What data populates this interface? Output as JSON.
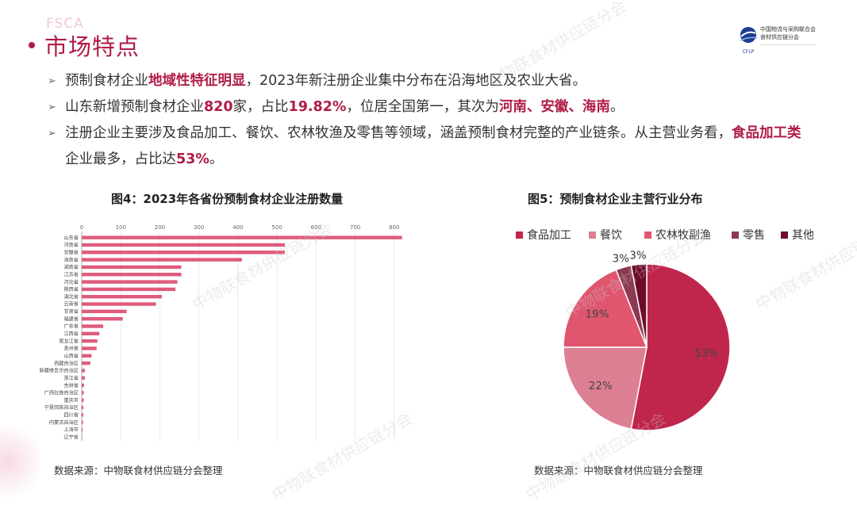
{
  "slide": {
    "faint_logo": "FSCA",
    "title": "市场特点"
  },
  "logo": {
    "line1": "中国物流与采购联合会",
    "line2": "食材供应链分会",
    "abbr": "CFLP",
    "line3": "——————————————"
  },
  "bullets": [
    [
      {
        "t": "预制食材企业",
        "hl": false
      },
      {
        "t": "地域性特征明显",
        "hl": true
      },
      {
        "t": "，2023年新注册企业集中分布在沿海地区及农业大省。",
        "hl": false
      }
    ],
    [
      {
        "t": "山东新增预制食材企业",
        "hl": false
      },
      {
        "t": "820",
        "hl": true
      },
      {
        "t": "家，占比",
        "hl": false
      },
      {
        "t": "19.82%",
        "hl": true
      },
      {
        "t": "，位居全国第一，其次为",
        "hl": false
      },
      {
        "t": "河南、安徽、海南",
        "hl": true
      },
      {
        "t": "。",
        "hl": false
      }
    ],
    [
      {
        "t": "注册企业主要涉及食品加工、餐饮、农林牧渔及零售等领域，涵盖预制食材完整的产业链条。从主营业务看，",
        "hl": false
      },
      {
        "t": "食品加工类",
        "hl": true
      },
      {
        "t": "企业最多，占比达",
        "hl": false
      },
      {
        "t": "53%",
        "hl": true
      },
      {
        "t": "。",
        "hl": false
      }
    ]
  ],
  "bullet_arrow": "➢",
  "colors": {
    "accent": "#b01c45",
    "bar": "#df5b7c",
    "pie": [
      "#c0264c",
      "#dd7f92",
      "#e0566f",
      "#8c3a52",
      "#6e0d2a"
    ]
  },
  "chart_data": [
    {
      "type": "bar",
      "orientation": "horizontal",
      "title": "图4：2023年各省份预制食材企业注册数量",
      "xlim": [
        0,
        900
      ],
      "xticks": [
        0,
        100,
        200,
        300,
        400,
        500,
        600,
        700,
        800
      ],
      "grid": true,
      "categories": [
        "山东省",
        "河南省",
        "安徽省",
        "海南省",
        "湖南省",
        "江苏省",
        "河北省",
        "陕西省",
        "湖北省",
        "云南省",
        "甘肃省",
        "福建省",
        "广东省",
        "江西省",
        "黑龙江省",
        "贵州省",
        "山西省",
        "西藏自治区",
        "新疆维吾尔自治区",
        "浙江省",
        "吉林省",
        "广西壮族自治区",
        "重庆市",
        "宁夏回族自治区",
        "四川省",
        "内蒙古自治区",
        "上海市",
        "辽宁省"
      ],
      "values": [
        820,
        520,
        520,
        410,
        255,
        255,
        245,
        240,
        205,
        190,
        115,
        105,
        55,
        45,
        40,
        38,
        25,
        22,
        8,
        8,
        6,
        5,
        5,
        4,
        4,
        3,
        2,
        1
      ]
    },
    {
      "type": "pie",
      "title": "图5：预制食材企业主营行业分布",
      "legend": "top",
      "labels": [
        "食品加工",
        "餐饮",
        "农林牧副渔",
        "零售",
        "其他"
      ],
      "values": [
        53,
        22,
        19,
        3,
        3
      ],
      "value_labels": [
        "53%",
        "22%",
        "19%",
        "3%",
        "3%"
      ]
    }
  ],
  "sources": {
    "left": "数据来源：中物联食材供应链分会整理",
    "right": "数据来源：中物联食材供应链分会整理"
  },
  "watermark": "中物联食材供应链分会"
}
